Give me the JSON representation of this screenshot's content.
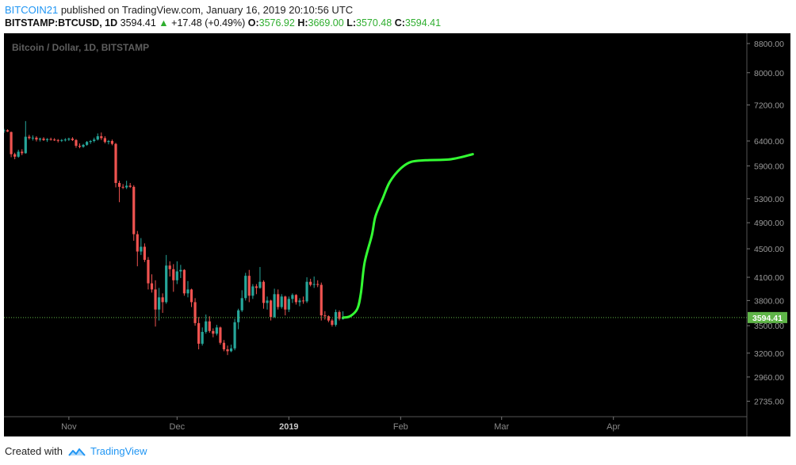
{
  "header": {
    "author": "BITCOIN21",
    "published_text": "published on TradingView.com, January 16, 2019 20:10:56 UTC",
    "symbol": "BITSTAMP:BTCUSD, 1D",
    "last": "3594.41",
    "change": "+17.48 (+0.49%)",
    "open_label": "O:",
    "open": "3576.92",
    "high_label": "H:",
    "high": "3669.00",
    "low_label": "L:",
    "low": "3570.48",
    "close_label": "C:",
    "close": "3594.41"
  },
  "footer": {
    "created_with": "Created with",
    "brand": "TradingView"
  },
  "colors": {
    "background": "#000000",
    "up_candle": "#26a69a",
    "down_candle": "#ef5350",
    "projection": "#33ff33",
    "price_label": "#5fb548"
  },
  "chart_data": {
    "type": "candlestick",
    "title": "Bitcoin / Dollar, 1D, BITSTAMP",
    "x_labels": [
      {
        "date": "2018-11-01",
        "label": "Nov"
      },
      {
        "date": "2018-12-01",
        "label": "Dec"
      },
      {
        "date": "2019-01-01",
        "label": "2019"
      },
      {
        "date": "2019-02-01",
        "label": "Feb"
      },
      {
        "date": "2019-03-01",
        "label": "Mar"
      },
      {
        "date": "2019-04-01",
        "label": "Apr"
      }
    ],
    "x_range": [
      "2018-10-14",
      "2019-05-08"
    ],
    "y_scale": "log",
    "y_ticks": [
      "8800.00",
      "8000.00",
      "7200.00",
      "6400.00",
      "5900.00",
      "5300.00",
      "4900.00",
      "4500.00",
      "4100.00",
      "3800.00",
      "3500.00",
      "3200.00",
      "2960.00",
      "2735.00"
    ],
    "y_range": [
      2600,
      9100
    ],
    "last_price": 3594.41,
    "last_price_label": "3594.41",
    "candles": [
      {
        "d": "2018-10-14",
        "o": 6610,
        "h": 6660,
        "l": 6570,
        "c": 6630
      },
      {
        "d": "2018-10-15",
        "o": 6630,
        "h": 6650,
        "l": 6590,
        "c": 6600
      },
      {
        "d": "2018-10-16",
        "o": 6590,
        "h": 6600,
        "l": 6070,
        "c": 6130
      },
      {
        "d": "2018-10-17",
        "o": 6130,
        "h": 6160,
        "l": 6030,
        "c": 6080
      },
      {
        "d": "2018-10-18",
        "o": 6080,
        "h": 6220,
        "l": 6060,
        "c": 6180
      },
      {
        "d": "2018-10-19",
        "o": 6180,
        "h": 6230,
        "l": 6110,
        "c": 6150
      },
      {
        "d": "2018-10-20",
        "o": 6150,
        "h": 6830,
        "l": 6140,
        "c": 6490
      },
      {
        "d": "2018-10-21",
        "o": 6490,
        "h": 6530,
        "l": 6430,
        "c": 6460
      },
      {
        "d": "2018-10-22",
        "o": 6460,
        "h": 6520,
        "l": 6410,
        "c": 6470
      },
      {
        "d": "2018-10-23",
        "o": 6470,
        "h": 6500,
        "l": 6390,
        "c": 6430
      },
      {
        "d": "2018-10-24",
        "o": 6430,
        "h": 6470,
        "l": 6390,
        "c": 6450
      },
      {
        "d": "2018-10-25",
        "o": 6450,
        "h": 6480,
        "l": 6400,
        "c": 6420
      },
      {
        "d": "2018-10-26",
        "o": 6420,
        "h": 6460,
        "l": 6380,
        "c": 6440
      },
      {
        "d": "2018-10-27",
        "o": 6440,
        "h": 6470,
        "l": 6410,
        "c": 6430
      },
      {
        "d": "2018-10-28",
        "o": 6430,
        "h": 6460,
        "l": 6400,
        "c": 6420
      },
      {
        "d": "2018-10-29",
        "o": 6420,
        "h": 6440,
        "l": 6370,
        "c": 6410
      },
      {
        "d": "2018-10-30",
        "o": 6410,
        "h": 6440,
        "l": 6380,
        "c": 6420
      },
      {
        "d": "2018-10-31",
        "o": 6420,
        "h": 6460,
        "l": 6390,
        "c": 6430
      },
      {
        "d": "2018-11-01",
        "o": 6430,
        "h": 6470,
        "l": 6400,
        "c": 6450
      },
      {
        "d": "2018-11-02",
        "o": 6450,
        "h": 6480,
        "l": 6400,
        "c": 6420
      },
      {
        "d": "2018-11-03",
        "o": 6420,
        "h": 6440,
        "l": 6260,
        "c": 6300
      },
      {
        "d": "2018-11-04",
        "o": 6300,
        "h": 6350,
        "l": 6250,
        "c": 6280
      },
      {
        "d": "2018-11-05",
        "o": 6280,
        "h": 6340,
        "l": 6260,
        "c": 6320
      },
      {
        "d": "2018-11-06",
        "o": 6320,
        "h": 6400,
        "l": 6300,
        "c": 6380
      },
      {
        "d": "2018-11-07",
        "o": 6380,
        "h": 6420,
        "l": 6340,
        "c": 6400
      },
      {
        "d": "2018-11-08",
        "o": 6400,
        "h": 6470,
        "l": 6370,
        "c": 6430
      },
      {
        "d": "2018-11-09",
        "o": 6430,
        "h": 6560,
        "l": 6410,
        "c": 6500
      },
      {
        "d": "2018-11-10",
        "o": 6500,
        "h": 6580,
        "l": 6420,
        "c": 6460
      },
      {
        "d": "2018-11-11",
        "o": 6460,
        "h": 6500,
        "l": 6350,
        "c": 6380
      },
      {
        "d": "2018-11-12",
        "o": 6380,
        "h": 6420,
        "l": 6330,
        "c": 6400
      },
      {
        "d": "2018-11-13",
        "o": 6400,
        "h": 6430,
        "l": 6310,
        "c": 6340
      },
      {
        "d": "2018-11-14",
        "o": 6340,
        "h": 6360,
        "l": 5500,
        "c": 5580
      },
      {
        "d": "2018-11-15",
        "o": 5580,
        "h": 5620,
        "l": 5240,
        "c": 5510
      },
      {
        "d": "2018-11-16",
        "o": 5510,
        "h": 5560,
        "l": 5470,
        "c": 5500
      },
      {
        "d": "2018-11-17",
        "o": 5500,
        "h": 5620,
        "l": 5470,
        "c": 5530
      },
      {
        "d": "2018-11-18",
        "o": 5530,
        "h": 5580,
        "l": 5490,
        "c": 5510
      },
      {
        "d": "2018-11-19",
        "o": 5510,
        "h": 5540,
        "l": 4620,
        "c": 4720
      },
      {
        "d": "2018-11-20",
        "o": 4720,
        "h": 4770,
        "l": 4250,
        "c": 4460
      },
      {
        "d": "2018-11-21",
        "o": 4460,
        "h": 4660,
        "l": 4410,
        "c": 4530
      },
      {
        "d": "2018-11-22",
        "o": 4530,
        "h": 4580,
        "l": 4310,
        "c": 4340
      },
      {
        "d": "2018-11-23",
        "o": 4340,
        "h": 4380,
        "l": 3940,
        "c": 4020
      },
      {
        "d": "2018-11-24",
        "o": 4020,
        "h": 4140,
        "l": 3900,
        "c": 3940
      },
      {
        "d": "2018-11-25",
        "o": 3940,
        "h": 4060,
        "l": 3490,
        "c": 3690
      },
      {
        "d": "2018-11-26",
        "o": 3690,
        "h": 3960,
        "l": 3560,
        "c": 3840
      },
      {
        "d": "2018-11-27",
        "o": 3840,
        "h": 3890,
        "l": 3650,
        "c": 3780
      },
      {
        "d": "2018-11-28",
        "o": 3780,
        "h": 4410,
        "l": 3760,
        "c": 4260
      },
      {
        "d": "2018-11-29",
        "o": 4260,
        "h": 4320,
        "l": 4110,
        "c": 4210
      },
      {
        "d": "2018-11-30",
        "o": 4210,
        "h": 4280,
        "l": 3910,
        "c": 4060
      },
      {
        "d": "2018-12-01",
        "o": 4060,
        "h": 4320,
        "l": 4010,
        "c": 4180
      },
      {
        "d": "2018-12-02",
        "o": 4180,
        "h": 4270,
        "l": 4090,
        "c": 4200
      },
      {
        "d": "2018-12-03",
        "o": 4200,
        "h": 4210,
        "l": 3860,
        "c": 3890
      },
      {
        "d": "2018-12-04",
        "o": 3890,
        "h": 4050,
        "l": 3840,
        "c": 3940
      },
      {
        "d": "2018-12-05",
        "o": 3940,
        "h": 3950,
        "l": 3720,
        "c": 3780
      },
      {
        "d": "2018-12-06",
        "o": 3780,
        "h": 3830,
        "l": 3500,
        "c": 3530
      },
      {
        "d": "2018-12-07",
        "o": 3530,
        "h": 3600,
        "l": 3240,
        "c": 3300
      },
      {
        "d": "2018-12-08",
        "o": 3300,
        "h": 3480,
        "l": 3280,
        "c": 3430
      },
      {
        "d": "2018-12-09",
        "o": 3430,
        "h": 3630,
        "l": 3410,
        "c": 3550
      },
      {
        "d": "2018-12-10",
        "o": 3550,
        "h": 3610,
        "l": 3420,
        "c": 3440
      },
      {
        "d": "2018-12-11",
        "o": 3440,
        "h": 3470,
        "l": 3370,
        "c": 3410
      },
      {
        "d": "2018-12-12",
        "o": 3410,
        "h": 3510,
        "l": 3390,
        "c": 3480
      },
      {
        "d": "2018-12-13",
        "o": 3480,
        "h": 3490,
        "l": 3290,
        "c": 3310
      },
      {
        "d": "2018-12-14",
        "o": 3310,
        "h": 3340,
        "l": 3220,
        "c": 3240
      },
      {
        "d": "2018-12-15",
        "o": 3240,
        "h": 3280,
        "l": 3180,
        "c": 3220
      },
      {
        "d": "2018-12-16",
        "o": 3220,
        "h": 3290,
        "l": 3210,
        "c": 3250
      },
      {
        "d": "2018-12-17",
        "o": 3250,
        "h": 3580,
        "l": 3230,
        "c": 3540
      },
      {
        "d": "2018-12-18",
        "o": 3540,
        "h": 3700,
        "l": 3460,
        "c": 3680
      },
      {
        "d": "2018-12-19",
        "o": 3680,
        "h": 3930,
        "l": 3660,
        "c": 3830
      },
      {
        "d": "2018-12-20",
        "o": 3830,
        "h": 4160,
        "l": 3800,
        "c": 4120
      },
      {
        "d": "2018-12-21",
        "o": 4120,
        "h": 4200,
        "l": 3780,
        "c": 3860
      },
      {
        "d": "2018-12-22",
        "o": 3860,
        "h": 4010,
        "l": 3820,
        "c": 3980
      },
      {
        "d": "2018-12-23",
        "o": 3980,
        "h": 4010,
        "l": 3880,
        "c": 3960
      },
      {
        "d": "2018-12-24",
        "o": 3960,
        "h": 4240,
        "l": 3950,
        "c": 4040
      },
      {
        "d": "2018-12-25",
        "o": 4040,
        "h": 4060,
        "l": 3700,
        "c": 3770
      },
      {
        "d": "2018-12-26",
        "o": 3770,
        "h": 3850,
        "l": 3690,
        "c": 3800
      },
      {
        "d": "2018-12-27",
        "o": 3800,
        "h": 3810,
        "l": 3560,
        "c": 3600
      },
      {
        "d": "2018-12-28",
        "o": 3600,
        "h": 3950,
        "l": 3590,
        "c": 3880
      },
      {
        "d": "2018-12-29",
        "o": 3880,
        "h": 3940,
        "l": 3690,
        "c": 3720
      },
      {
        "d": "2018-12-30",
        "o": 3720,
        "h": 3880,
        "l": 3700,
        "c": 3850
      },
      {
        "d": "2018-12-31",
        "o": 3850,
        "h": 3860,
        "l": 3620,
        "c": 3690
      },
      {
        "d": "2019-01-01",
        "o": 3690,
        "h": 3850,
        "l": 3660,
        "c": 3820
      },
      {
        "d": "2019-01-02",
        "o": 3820,
        "h": 3890,
        "l": 3770,
        "c": 3870
      },
      {
        "d": "2019-01-03",
        "o": 3870,
        "h": 3880,
        "l": 3750,
        "c": 3780
      },
      {
        "d": "2019-01-04",
        "o": 3780,
        "h": 3830,
        "l": 3730,
        "c": 3800
      },
      {
        "d": "2019-01-05",
        "o": 3800,
        "h": 3850,
        "l": 3760,
        "c": 3790
      },
      {
        "d": "2019-01-06",
        "o": 3790,
        "h": 4100,
        "l": 3770,
        "c": 4040
      },
      {
        "d": "2019-01-07",
        "o": 4040,
        "h": 4080,
        "l": 3980,
        "c": 4000
      },
      {
        "d": "2019-01-08",
        "o": 4000,
        "h": 4110,
        "l": 3960,
        "c": 4010
      },
      {
        "d": "2019-01-09",
        "o": 4010,
        "h": 4060,
        "l": 3970,
        "c": 4000
      },
      {
        "d": "2019-01-10",
        "o": 4000,
        "h": 4030,
        "l": 3560,
        "c": 3620
      },
      {
        "d": "2019-01-11",
        "o": 3620,
        "h": 3670,
        "l": 3570,
        "c": 3610
      },
      {
        "d": "2019-01-12",
        "o": 3610,
        "h": 3620,
        "l": 3540,
        "c": 3560
      },
      {
        "d": "2019-01-13",
        "o": 3560,
        "h": 3580,
        "l": 3490,
        "c": 3510
      },
      {
        "d": "2019-01-14",
        "o": 3510,
        "h": 3690,
        "l": 3490,
        "c": 3660
      },
      {
        "d": "2019-01-15",
        "o": 3660,
        "h": 3680,
        "l": 3560,
        "c": 3580
      },
      {
        "d": "2019-01-16",
        "o": 3576.92,
        "h": 3669,
        "l": 3570.48,
        "c": 3594.41
      }
    ],
    "projection": [
      {
        "d": "2019-01-16",
        "v": 3594
      },
      {
        "d": "2019-01-18",
        "v": 3610
      },
      {
        "d": "2019-01-20",
        "v": 3700
      },
      {
        "d": "2019-01-21",
        "v": 3900
      },
      {
        "d": "2019-01-22",
        "v": 4300
      },
      {
        "d": "2019-01-24",
        "v": 4700
      },
      {
        "d": "2019-01-25",
        "v": 5000
      },
      {
        "d": "2019-01-27",
        "v": 5300
      },
      {
        "d": "2019-01-29",
        "v": 5600
      },
      {
        "d": "2019-02-01",
        "v": 5850
      },
      {
        "d": "2019-02-04",
        "v": 5980
      },
      {
        "d": "2019-02-08",
        "v": 6010
      },
      {
        "d": "2019-02-15",
        "v": 6030
      },
      {
        "d": "2019-02-21",
        "v": 6130
      }
    ]
  }
}
